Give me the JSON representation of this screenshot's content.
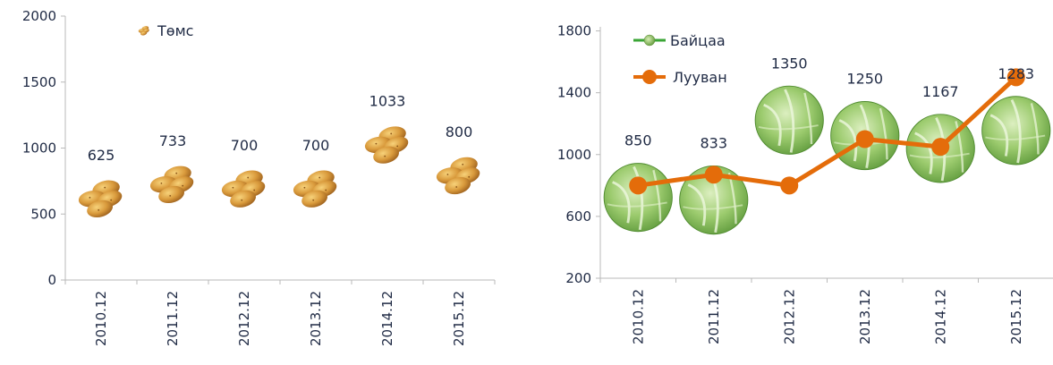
{
  "chart_data": [
    {
      "type": "scatter",
      "categories": [
        "2010.12",
        "2011.12",
        "2012.12",
        "2013.12",
        "2014.12",
        "2015.12"
      ],
      "series": [
        {
          "name": "Төмс",
          "values": [
            625,
            733,
            700,
            700,
            1033,
            800
          ],
          "marker": "potato-icon"
        }
      ],
      "ylim": [
        0,
        2000
      ],
      "yticks": [
        0,
        500,
        1000,
        1500,
        2000
      ],
      "data_labels": [
        "625",
        "733",
        "700",
        "700",
        "1033",
        "800"
      ],
      "legend_position": "top-left",
      "grid": false
    },
    {
      "type": "line",
      "categories": [
        "2010.12",
        "2011.12",
        "2012.12",
        "2013.12",
        "2014.12",
        "2015.12"
      ],
      "series": [
        {
          "name": "Байцаа",
          "values": [
            850,
            833,
            1350,
            1250,
            1167,
            1283
          ],
          "marker": "cabbage-icon",
          "color": "#3aa535"
        },
        {
          "name": "Лууван",
          "values": [
            800,
            870,
            800,
            1100,
            1050,
            1500
          ],
          "color": "#e46c0a"
        }
      ],
      "ylim": [
        200,
        2000
      ],
      "yticks": [
        200,
        600,
        1000,
        1400,
        1800
      ],
      "data_labels": [
        "850",
        "833",
        "1350",
        "1250",
        "1167",
        "1283"
      ],
      "legend_position": "top-left",
      "grid": false
    }
  ]
}
